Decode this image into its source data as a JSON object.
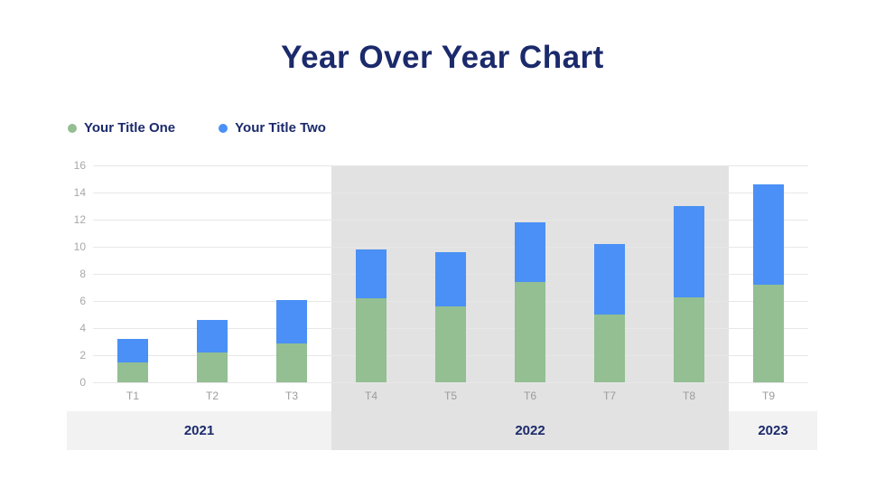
{
  "title": "Year Over Year Chart",
  "legend": {
    "items": [
      {
        "label": "Your Title One",
        "color": "#93bf92"
      },
      {
        "label": "Your Title Two",
        "color": "#4a90f6"
      }
    ]
  },
  "colors": {
    "accent_navy": "#1b2a6b",
    "series_green": "#93bf92",
    "series_blue": "#4a90f6",
    "highlight_band": "#e2e2e2",
    "light_band": "#f2f2f2",
    "gridline": "#e7e7e7",
    "axis_text": "#a8a8a8"
  },
  "chart_data": {
    "type": "bar",
    "subtype": "stacked-column",
    "title": "Year Over Year Chart",
    "categories": [
      "T1",
      "T2",
      "T3",
      "T4",
      "T5",
      "T6",
      "T7",
      "T8",
      "T9"
    ],
    "series": [
      {
        "name": "Your Title One",
        "color": "#93bf92",
        "values": [
          1.5,
          2.2,
          2.9,
          6.2,
          5.6,
          7.4,
          5.0,
          6.3,
          7.2
        ]
      },
      {
        "name": "Your Title Two",
        "color": "#4a90f6",
        "values": [
          1.7,
          2.4,
          3.2,
          3.6,
          4.0,
          4.4,
          5.2,
          6.7,
          7.4
        ]
      }
    ],
    "stacked_totals": [
      3.2,
      4.6,
      6.1,
      9.8,
      9.6,
      11.8,
      10.2,
      13.0,
      14.6
    ],
    "xlabel": "",
    "ylabel": "",
    "ylim": [
      0,
      16
    ],
    "ytick_step": 2,
    "yticks": [
      0,
      2,
      4,
      6,
      8,
      10,
      12,
      14,
      16
    ],
    "grid": true,
    "legend_position": "top-left",
    "year_groups": [
      {
        "label": "2021",
        "start_category": "T1",
        "end_category": "T3",
        "highlighted": false
      },
      {
        "label": "2022",
        "start_category": "T4",
        "end_category": "T8",
        "highlighted": true
      },
      {
        "label": "2023",
        "start_category": "T9",
        "end_category": "T9",
        "highlighted": false
      }
    ]
  }
}
